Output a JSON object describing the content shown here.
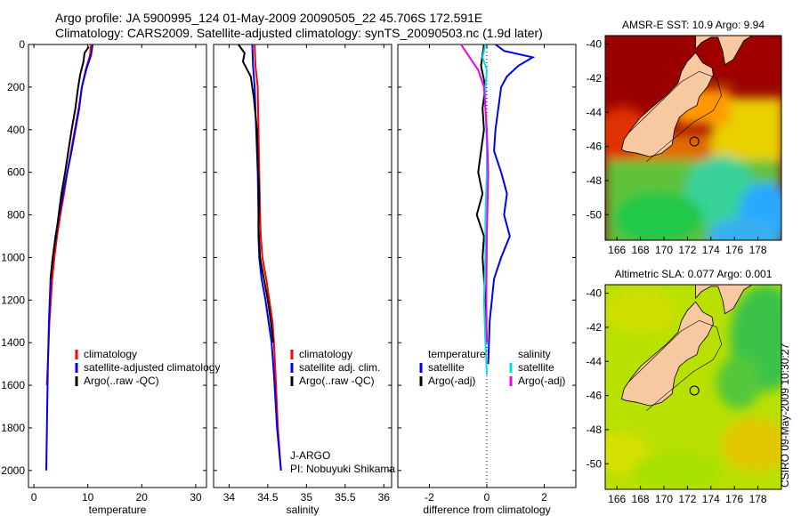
{
  "header": {
    "line1": "Argo profile: JA 5900995_124 01-May-2009 20090505_22 45.706S 172.591E",
    "line2": "Climatology: CARS2009. Satellite-adjusted climatology: synTS_20090503.nc (1.9d later)"
  },
  "colors": {
    "climatology": "#ff0000",
    "satellite": "#0000ee",
    "argo": "#000000",
    "sat_salinity": "#00e0e0",
    "argo_salinity": "#ee00ee"
  },
  "chart_data": [
    {
      "type": "line",
      "name": "temperature-profile",
      "xlabel": "temperature",
      "ylabel": "",
      "xlim": [
        -1,
        32
      ],
      "ylim": [
        2080,
        0
      ],
      "xticks": [
        0,
        10,
        20,
        30
      ],
      "xtick_labels": [
        "0",
        "10",
        "20",
        "30"
      ],
      "yticks": [
        0,
        200,
        400,
        600,
        800,
        1000,
        1200,
        1400,
        1600,
        1800,
        2000
      ],
      "ytick_labels": [
        "0",
        "200",
        "400",
        "600",
        "800",
        "1000",
        "1200",
        "1400",
        "1600",
        "1800",
        "2000"
      ],
      "series": [
        {
          "name": "climatology",
          "color": "#ff0000",
          "x": [
            10.6,
            10.4,
            9.6,
            8.9,
            8.3,
            7.6,
            6.9,
            6.2,
            5.6,
            4.9,
            4.3,
            3.8,
            3.4,
            2.9,
            2.6,
            2.4
          ],
          "y": [
            0,
            50,
            120,
            200,
            300,
            400,
            500,
            600,
            700,
            800,
            900,
            1000,
            1100,
            1300,
            1500,
            1600
          ]
        },
        {
          "name": "satellite-adjusted climatology",
          "color": "#0000ee",
          "x": [
            10.9,
            10.6,
            9.7,
            8.9,
            8.4,
            7.7,
            7.0,
            6.2,
            5.4,
            4.7,
            4.0,
            3.5,
            3.1,
            2.8,
            2.6,
            2.3
          ],
          "y": [
            0,
            50,
            120,
            200,
            300,
            400,
            500,
            600,
            700,
            800,
            900,
            1000,
            1100,
            1300,
            1500,
            2000
          ]
        },
        {
          "name": "Argo(..raw -QC)",
          "color": "#000000",
          "x": [
            10.2,
            9.4,
            9.2,
            8.6,
            8.2,
            7.7,
            7.0,
            6.4,
            5.8,
            5.1,
            4.6,
            4.1,
            3.5,
            3.1
          ],
          "y": [
            10,
            40,
            80,
            140,
            200,
            300,
            400,
            500,
            600,
            700,
            800,
            900,
            1000,
            1100
          ]
        }
      ],
      "legend": {
        "position": "bottom-right",
        "entries": [
          "climatology",
          "satellite-adjusted climatology",
          "Argo(..raw -QC)"
        ]
      }
    },
    {
      "type": "line",
      "name": "salinity-profile",
      "xlabel": "salinity",
      "ylabel": "",
      "xlim": [
        33.8,
        36.1
      ],
      "ylim": [
        2080,
        0
      ],
      "xticks": [
        34,
        34.5,
        35,
        35.5,
        36
      ],
      "xtick_labels": [
        "34",
        "34.5",
        "35",
        "35.5",
        "36"
      ],
      "series": [
        {
          "name": "climatology",
          "color": "#ff0000",
          "x": [
            34.33,
            34.34,
            34.37,
            34.38,
            34.39,
            34.4,
            34.41,
            34.43,
            34.48,
            34.52,
            34.56,
            34.58,
            34.6,
            34.63,
            34.67
          ],
          "y": [
            0,
            100,
            200,
            400,
            600,
            800,
            900,
            1000,
            1100,
            1200,
            1300,
            1400,
            1550,
            1800,
            2000
          ]
        },
        {
          "name": "satellite adj. clim.",
          "color": "#0000ee",
          "x": [
            34.3,
            34.31,
            34.33,
            34.35,
            34.37,
            34.38,
            34.38,
            34.39,
            34.42,
            34.47,
            34.51,
            34.55,
            34.58,
            34.62,
            34.67
          ],
          "y": [
            0,
            100,
            200,
            400,
            600,
            800,
            900,
            1000,
            1100,
            1200,
            1300,
            1400,
            1550,
            1800,
            2000
          ]
        },
        {
          "name": "Argo(..raw -QC)",
          "color": "#000000",
          "x": [
            34.12,
            34.2,
            34.18,
            34.28,
            34.32,
            34.36,
            34.37,
            34.39,
            34.38,
            34.4,
            34.45,
            34.5,
            34.54,
            34.57
          ],
          "y": [
            0,
            40,
            80,
            150,
            250,
            400,
            550,
            700,
            850,
            1000,
            1100,
            1200,
            1300,
            1400
          ]
        }
      ],
      "legend": {
        "position": "bottom-right",
        "entries": [
          "climatology",
          "satellite adj. clim.",
          "Argo(..raw -QC)"
        ]
      },
      "annotation": [
        "J-ARGO",
        "PI: Nobuyuki Shikama"
      ]
    },
    {
      "type": "line",
      "name": "difference-profile",
      "xlabel": "difference from climatology",
      "ylabel": "",
      "xlim": [
        -3.1,
        3.1
      ],
      "ylim": [
        2080,
        0
      ],
      "xticks": [
        -2,
        0,
        2
      ],
      "xtick_labels": [
        "-2",
        "0",
        "2"
      ],
      "series": [
        {
          "name": "temperature satellite",
          "color": "#0000ee",
          "x": [
            0.3,
            0.6,
            1.6,
            1.1,
            0.7,
            0.5,
            0.4,
            0.3,
            0.25,
            0.5,
            0.7,
            0.6,
            0.8,
            0.5,
            0.25,
            0.1,
            0.05
          ],
          "y": [
            0,
            30,
            60,
            100,
            150,
            200,
            300,
            400,
            500,
            600,
            700,
            800,
            900,
            1000,
            1100,
            1300,
            1500
          ]
        },
        {
          "name": "temperature Argo(-adj)",
          "color": "#000000",
          "x": [
            -0.1,
            -0.2,
            -0.05,
            -0.15,
            -0.1,
            -0.2,
            -0.3,
            -0.15,
            -0.35,
            -0.1,
            -0.15,
            -0.05,
            0.0
          ],
          "y": [
            0,
            100,
            200,
            300,
            400,
            500,
            600,
            700,
            800,
            900,
            1000,
            1200,
            1400
          ]
        },
        {
          "name": "salinity satellite",
          "color": "#00e0e0",
          "x": [
            -0.05,
            -0.15,
            0.0,
            -0.05,
            -0.05,
            -0.02,
            0.0,
            0.0,
            -0.05,
            -0.05,
            -0.1,
            -0.05,
            0.0
          ],
          "y": [
            0,
            60,
            120,
            200,
            300,
            400,
            500,
            600,
            800,
            1000,
            1200,
            1400,
            1550
          ]
        },
        {
          "name": "salinity Argo(-adj)",
          "color": "#ee00ee",
          "x": [
            -0.9,
            -0.7,
            -0.3,
            -0.1,
            0.0,
            0.05,
            0.0,
            -0.02,
            0.0
          ],
          "y": [
            0,
            40,
            120,
            200,
            400,
            600,
            900,
            1200,
            1400
          ]
        }
      ],
      "legend": {
        "position": "bottom",
        "temperature_title": "temperature",
        "salinity_title": "salinity",
        "entries": [
          "satellite",
          "Argo(-adj)",
          "satellite",
          "Argo(-adj)"
        ]
      }
    },
    {
      "type": "heatmap",
      "name": "sst-map",
      "title": "AMSR-E SST: 10.9  Argo: 9.94",
      "xlim": [
        165,
        180
      ],
      "ylim": [
        -51.5,
        -39.5
      ],
      "xticks": [
        166,
        168,
        170,
        172,
        174,
        176,
        178
      ],
      "xtick_labels": [
        "166",
        "168",
        "170",
        "172",
        "174",
        "176",
        "178"
      ],
      "yticks": [
        -40,
        -42,
        -44,
        -46,
        -48,
        -50
      ],
      "ytick_labels": [
        "-40",
        "-42",
        "-44",
        "-46",
        "-48",
        "-50"
      ],
      "marker": {
        "lon": 172.591,
        "lat": -45.706
      }
    },
    {
      "type": "heatmap",
      "name": "sla-map",
      "title": "Altimetric SLA: 0.077  Argo: 0.001",
      "xlim": [
        165,
        180
      ],
      "ylim": [
        -51.5,
        -39.5
      ],
      "xticks": [
        166,
        168,
        170,
        172,
        174,
        176,
        178
      ],
      "xtick_labels": [
        "166",
        "168",
        "170",
        "172",
        "174",
        "176",
        "178"
      ],
      "yticks": [
        -40,
        -42,
        -44,
        -46,
        -48,
        -50
      ],
      "ytick_labels": [
        "-40",
        "-42",
        "-44",
        "-46",
        "-48",
        "-50"
      ],
      "marker": {
        "lon": 172.591,
        "lat": -45.706
      }
    }
  ],
  "side_label": "CSIRO 09-May-2009 10:30:27"
}
